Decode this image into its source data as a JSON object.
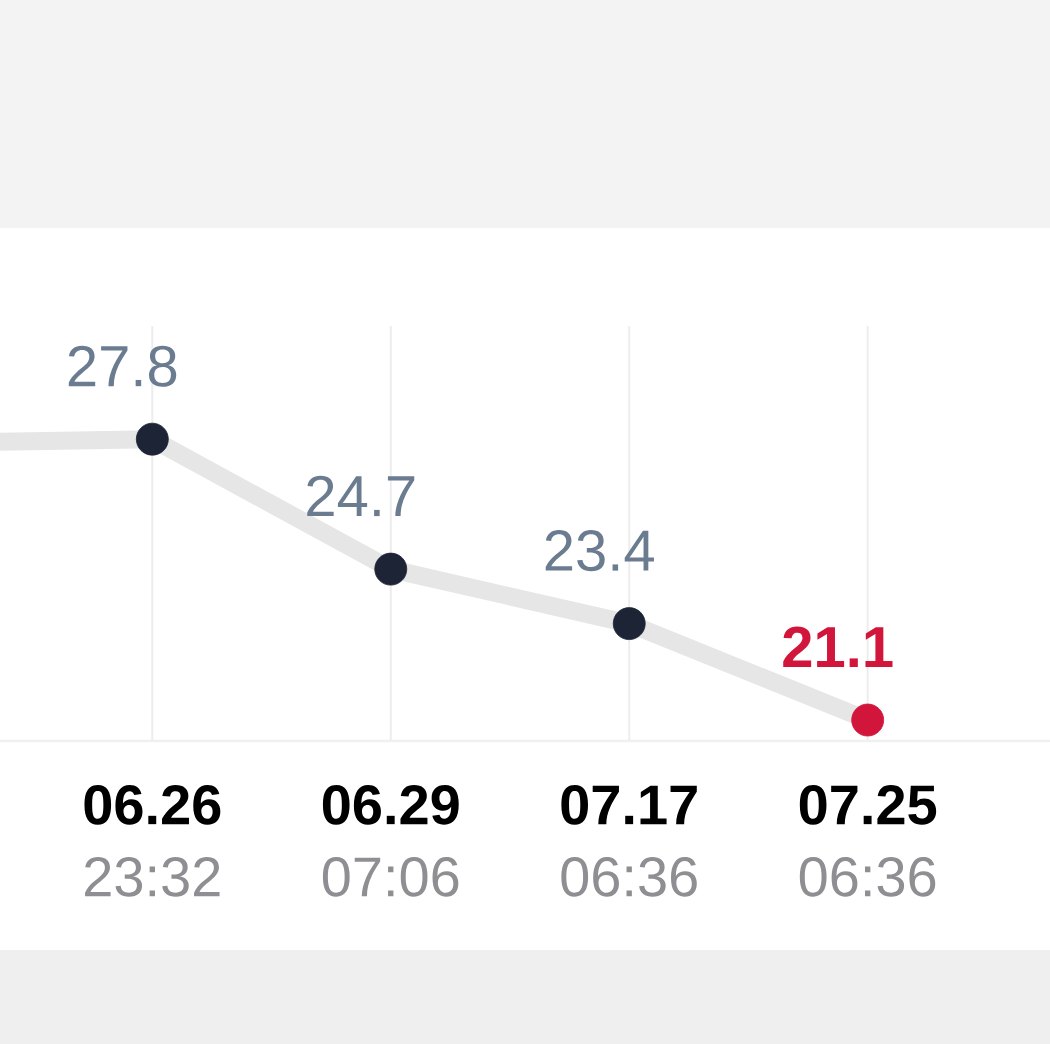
{
  "chart_data": {
    "type": "line",
    "categories": [
      null,
      "**06.26** 23:32",
      "**06.29** 07:06",
      "**07.17** 06:36",
      "**07.25** 06:36"
    ],
    "values": [
      27.7,
      27.8,
      24.7,
      23.4,
      21.1
    ],
    "value_labels": [
      null,
      "27.8",
      "24.7",
      "23.4",
      "21.1"
    ],
    "color": "#e6e6e6",
    "colors": [
      null,
      "#1d2436",
      "#1d2436",
      "#1d2436",
      "#d2153a"
    ],
    "marker": "circle",
    "ylim": [
      20.6,
      30.5
    ],
    "grid": "x",
    "tick_labels": "x"
  }
}
